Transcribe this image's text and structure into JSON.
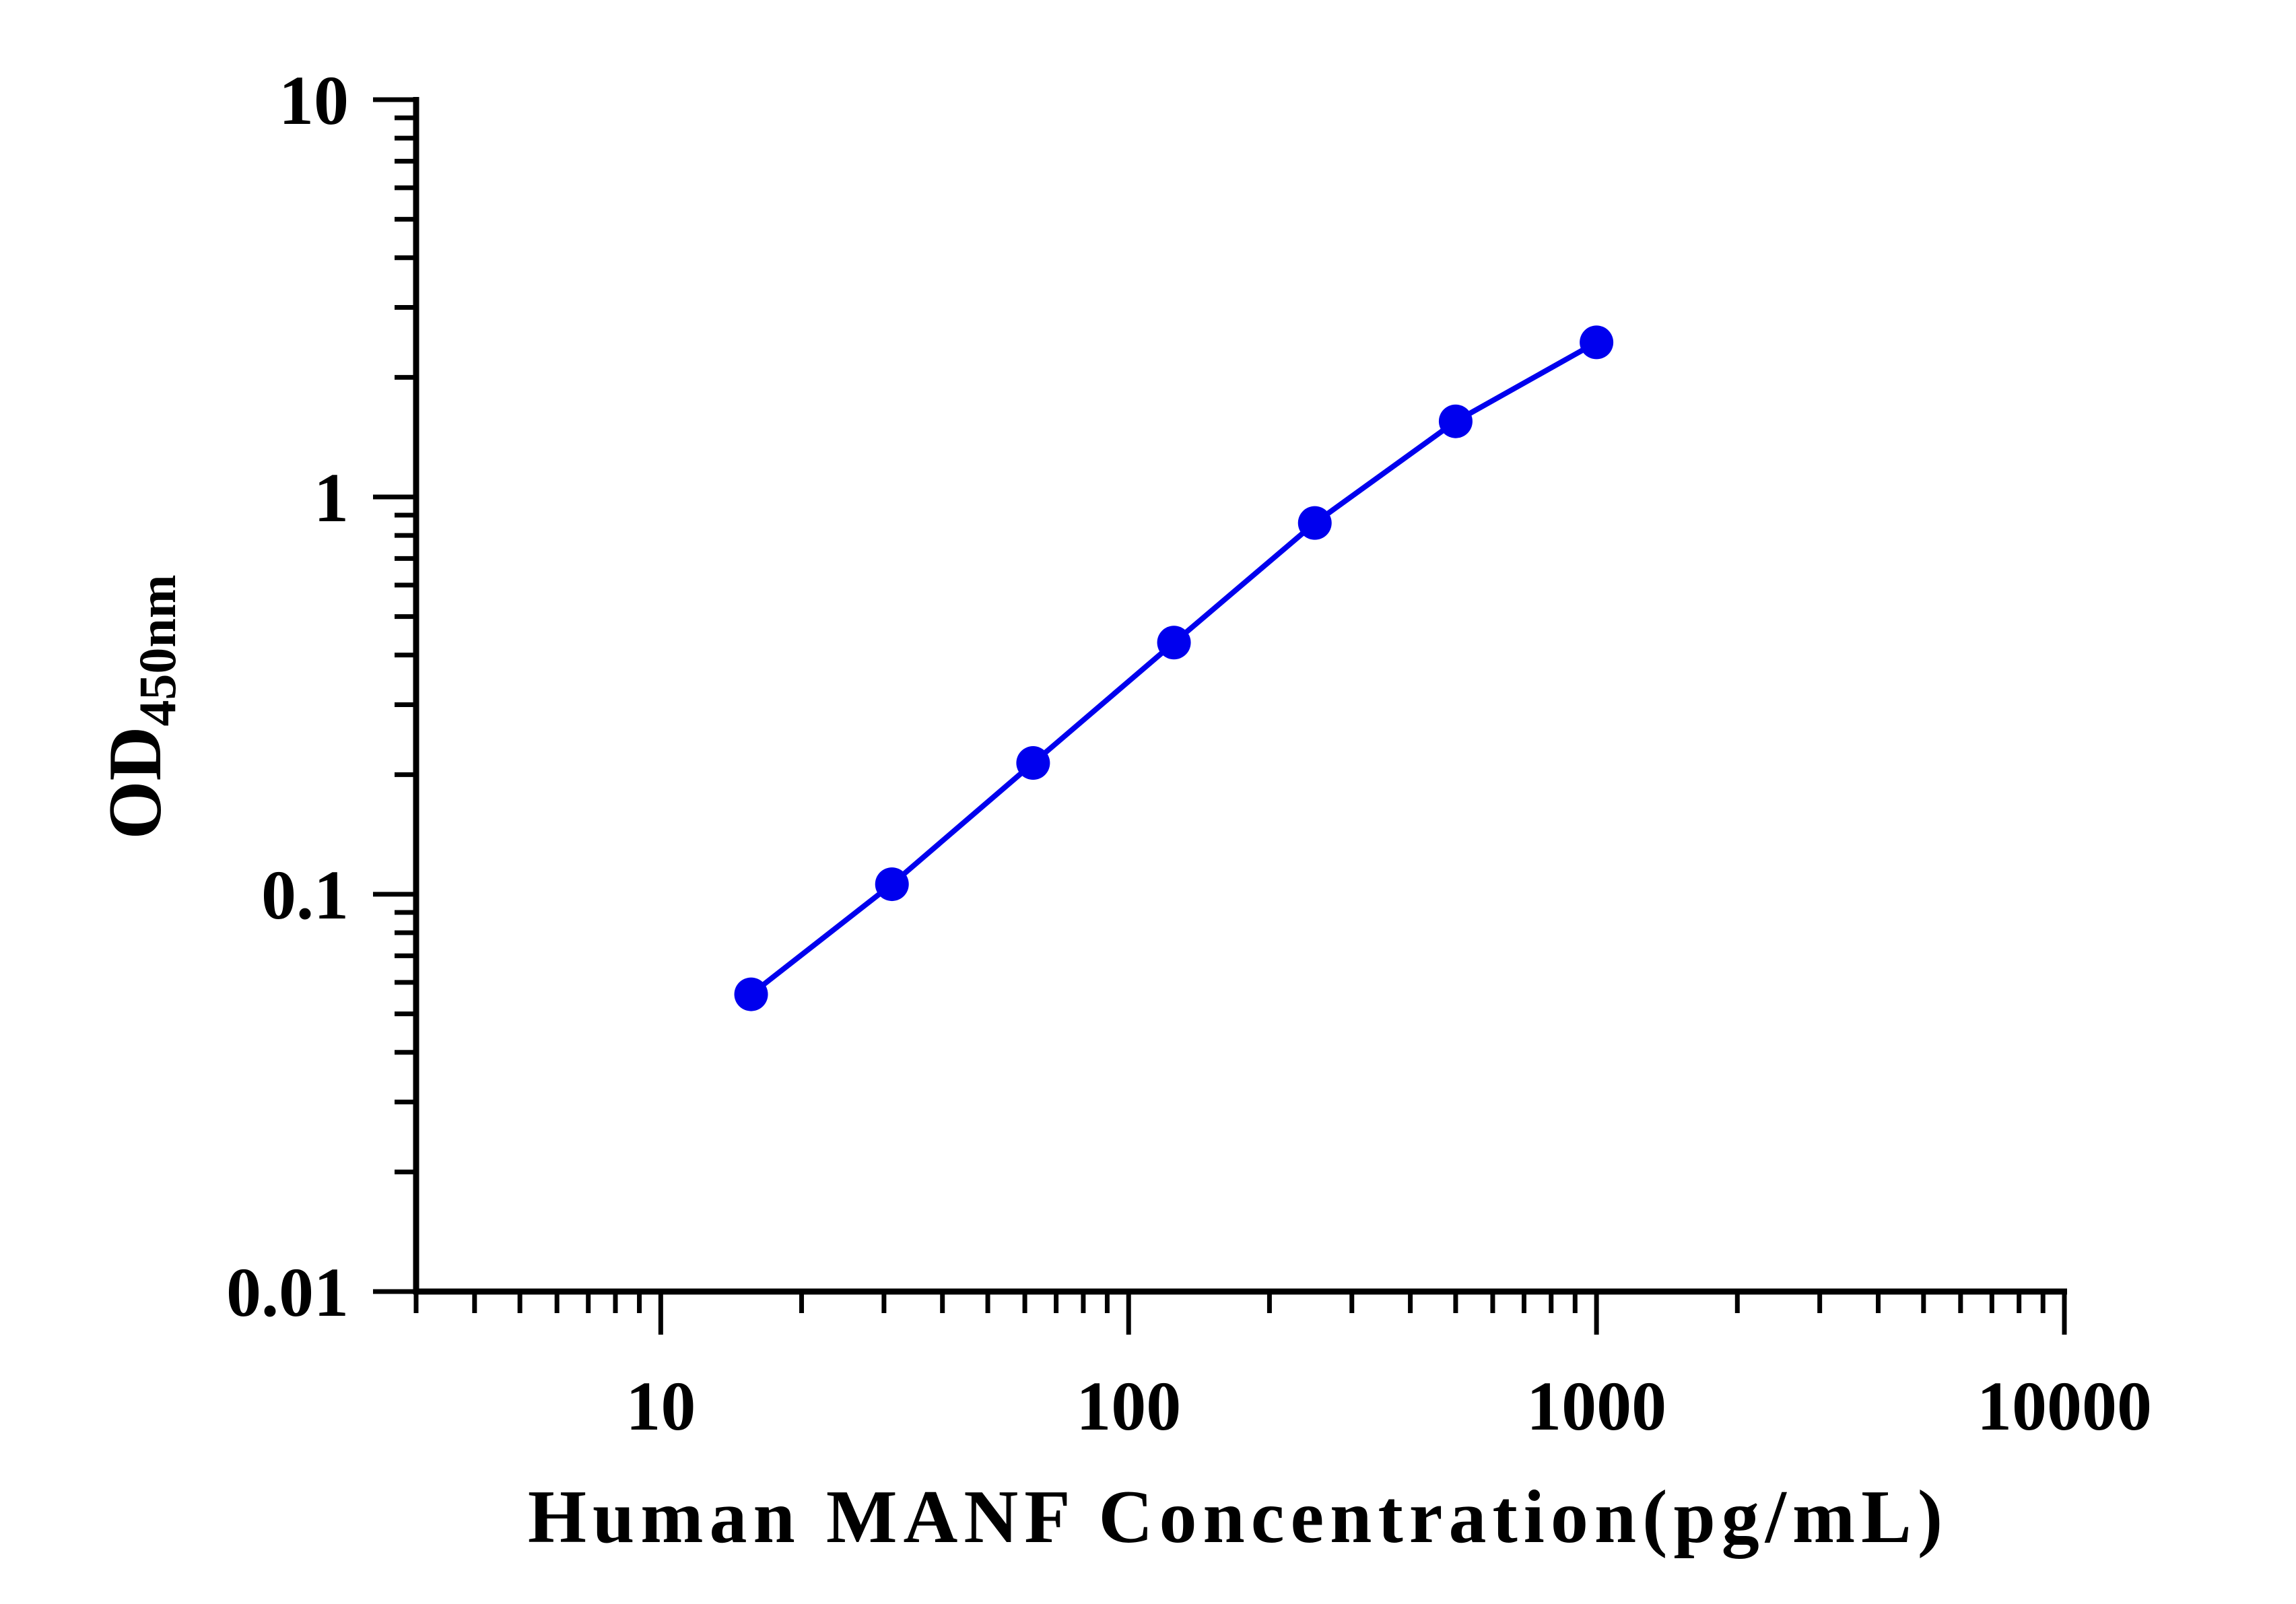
{
  "chart_data": {
    "type": "line",
    "xlabel": "Human MANF Concentration(pg/mL)",
    "ylabel_main": "OD",
    "ylabel_sub": "450nm",
    "x_scale": "log",
    "y_scale": "log",
    "xlim": [
      3,
      10000
    ],
    "ylim": [
      0.01,
      10
    ],
    "x_tick_labels": [
      "10",
      "100",
      "1000",
      "10000"
    ],
    "y_tick_labels": [
      "0.01",
      "0.1",
      "1",
      "10"
    ],
    "grid": false,
    "legend": "none",
    "series": [
      {
        "color": "#0000ee",
        "x": [
          15.6,
          31.2,
          62.5,
          125,
          250,
          500,
          1000
        ],
        "y": [
          0.056,
          0.106,
          0.214,
          0.43,
          0.86,
          1.55,
          2.45
        ]
      }
    ]
  }
}
